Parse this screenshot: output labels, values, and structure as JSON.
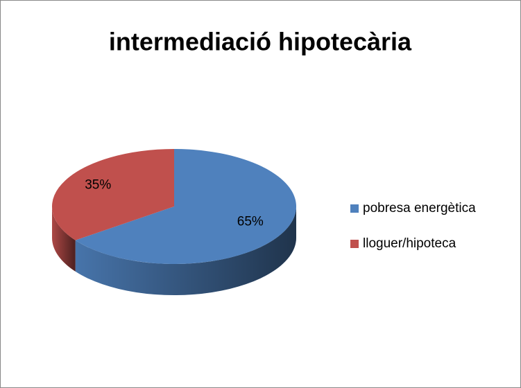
{
  "chart_data": {
    "type": "pie",
    "title": "intermediació hipotecària",
    "categories": [
      "pobresa energètica",
      "lloguer/hipoteca"
    ],
    "values": [
      65,
      35
    ],
    "value_labels": [
      "65%",
      "35%"
    ],
    "colors": [
      "#4f81bd",
      "#c0504d"
    ],
    "legend": "right"
  }
}
